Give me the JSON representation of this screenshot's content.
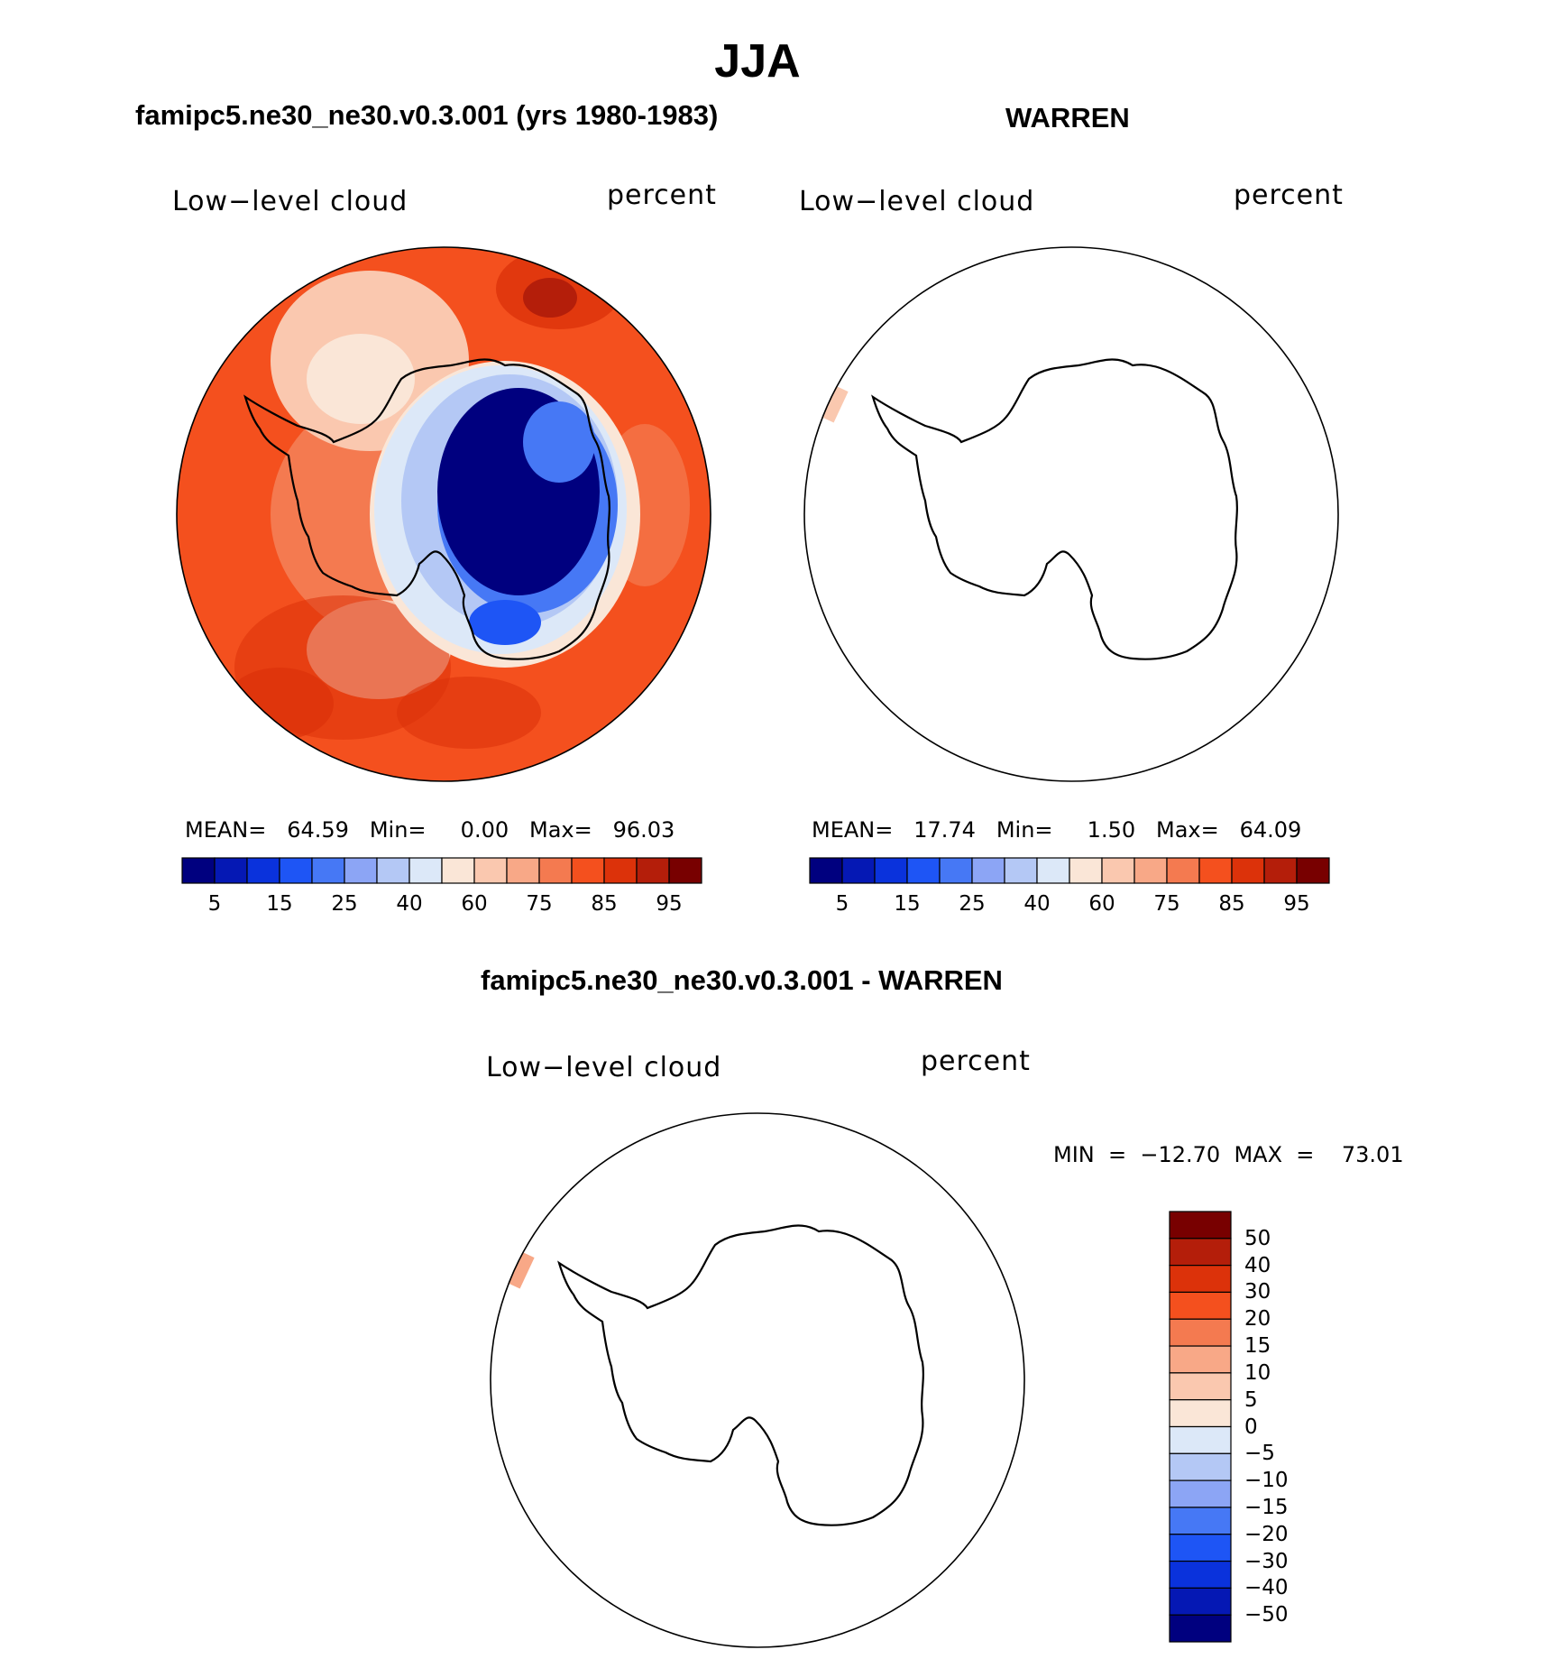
{
  "page": {
    "title": "JJA",
    "left_subtitle": "famipc5.ne30_ne30.v0.3.001 (yrs 1980-1983)",
    "right_subtitle": "WARREN",
    "diff_subtitle": "famipc5.ne30_ne30.v0.3.001 - WARREN"
  },
  "colors": {
    "abs_scale": [
      "#00007f",
      "#0518b4",
      "#0a32dc",
      "#1e55f5",
      "#4678f5",
      "#8ca5f5",
      "#b4c8f5",
      "#dce8f8",
      "#fae6d7",
      "#fac8af",
      "#f8a887",
      "#f47a50",
      "#f4501e",
      "#dc320a",
      "#b41e0a",
      "#780000"
    ],
    "diff_scale": [
      "#00007f",
      "#0518b4",
      "#0a32dc",
      "#1e55f5",
      "#4678f5",
      "#8ca5f5",
      "#b4c8f5",
      "#dce8f8",
      "#fae6d7",
      "#fac8af",
      "#f8a887",
      "#f47a50",
      "#f4501e",
      "#dc320a",
      "#b41e0a",
      "#780000"
    ]
  },
  "chart_data": [
    {
      "type": "heatmap",
      "projection": "south-polar-stereographic",
      "title": "famipc5.ne30_ne30.v0.3.001 (yrs 1980-1983)",
      "variable": "Low-level cloud",
      "units": "percent",
      "stats": {
        "mean": "64.59",
        "min": "0.00",
        "max": "96.03"
      },
      "colorbar_levels": [
        "5",
        "15",
        "25",
        "40",
        "60",
        "75",
        "85",
        "95"
      ],
      "pattern": "high cloud (75-95%) over Southern Ocean, near 0-5% over East Antarctic plateau"
    },
    {
      "type": "heatmap",
      "projection": "south-polar-stereographic",
      "title": "WARREN",
      "variable": "Low-level cloud",
      "units": "percent",
      "stats": {
        "mean": "17.74",
        "min": "1.50",
        "max": "64.09"
      },
      "colorbar_levels": [
        "5",
        "15",
        "25",
        "40",
        "60",
        "75",
        "85",
        "95"
      ],
      "pattern": "mostly missing; single small patch (~60-75%) at edge near Antarctic Peninsula"
    },
    {
      "type": "heatmap",
      "projection": "south-polar-stereographic",
      "title": "famipc5.ne30_ne30.v0.3.001 - WARREN",
      "variable": "Low-level cloud",
      "units": "percent",
      "stats": {
        "min": "-12.70",
        "max": "73.01"
      },
      "colorbar_levels": [
        "50",
        "40",
        "30",
        "20",
        "15",
        "10",
        "5",
        "0",
        "-5",
        "-10",
        "-15",
        "-20",
        "-30",
        "-40",
        "-50"
      ],
      "pattern": "mostly missing; single small patch (~10-15) at edge near Antarctic Peninsula"
    }
  ],
  "labels": {
    "p1": {
      "var": "Low−level cloud",
      "units": "percent",
      "stats": "MEAN=   64.59   Min=     0.00   Max=   96.03",
      "ticks": [
        "5",
        "15",
        "25",
        "40",
        "60",
        "75",
        "85",
        "95"
      ]
    },
    "p2": {
      "var": "Low−level cloud",
      "units": "percent",
      "stats": "MEAN=   17.74   Min=     1.50   Max=   64.09",
      "ticks": [
        "5",
        "15",
        "25",
        "40",
        "60",
        "75",
        "85",
        "95"
      ]
    },
    "p3": {
      "var": "Low−level cloud",
      "units": "percent",
      "stats": "MIN  =  −12.70  MAX  =    73.01",
      "ticks": [
        "50",
        "40",
        "30",
        "20",
        "15",
        "10",
        "5",
        "0",
        "−5",
        "−10",
        "−15",
        "−20",
        "−30",
        "−40",
        "−50"
      ]
    }
  }
}
